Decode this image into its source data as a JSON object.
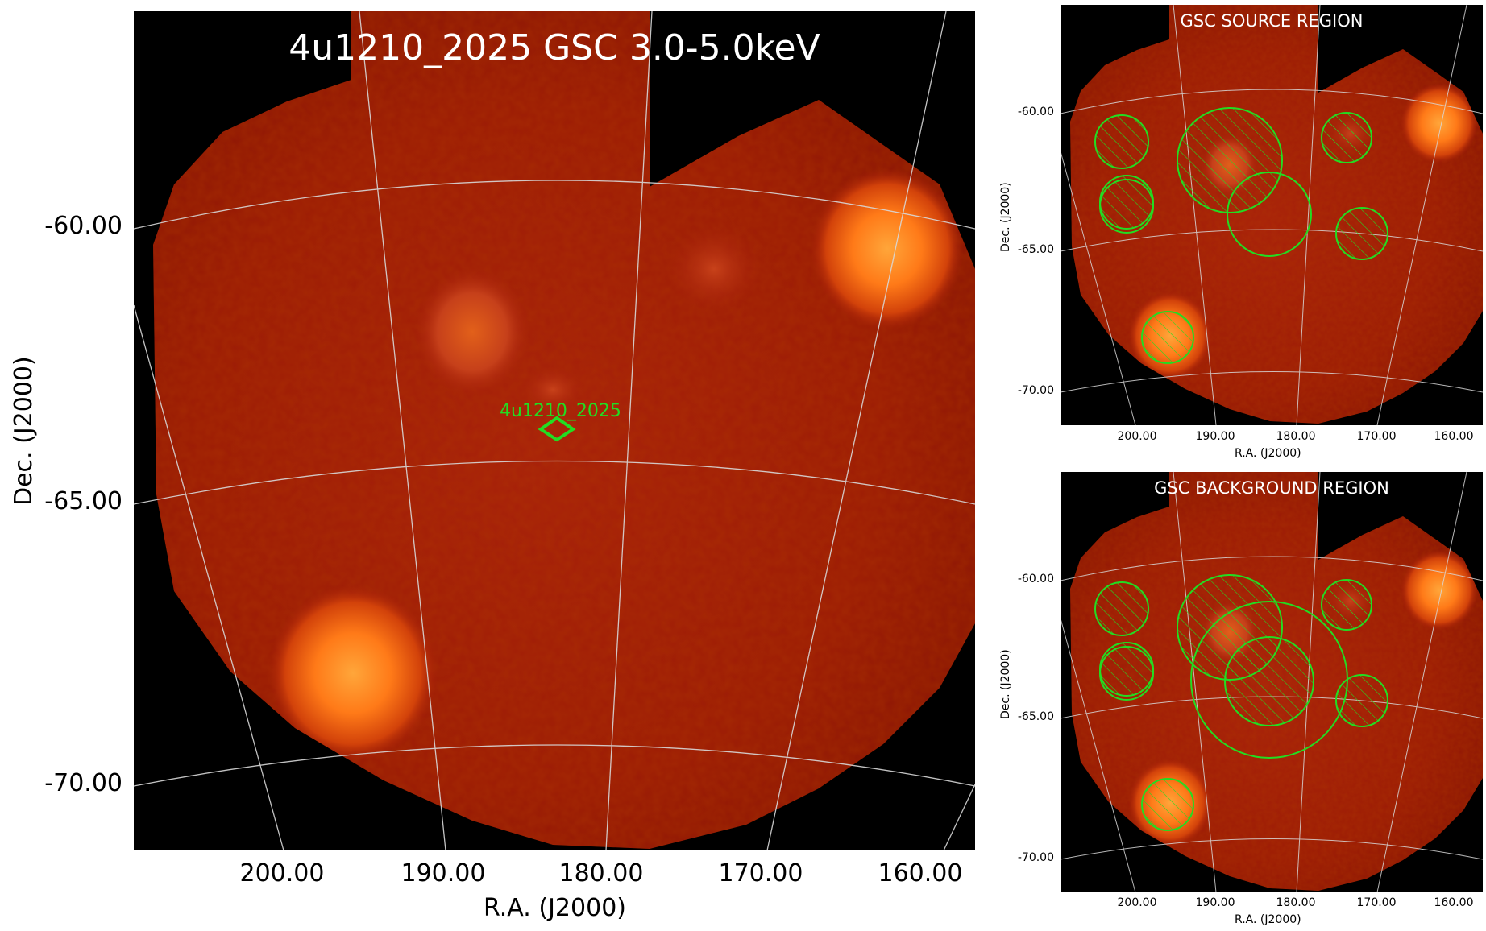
{
  "main_panel": {
    "title": "4u1210_2025 GSC 3.0-5.0keV",
    "source_label": "4u1210_2025",
    "yticks": [
      "-60.00",
      "-65.00",
      "-70.00"
    ],
    "xticks": [
      "200.00",
      "190.00",
      "180.00",
      "170.00",
      "160.00"
    ],
    "xlabel": "R.A. (J2000)",
    "ylabel": "Dec. (J2000)"
  },
  "source_panel": {
    "title": "GSC SOURCE REGION",
    "yticks": [
      "-60.00",
      "-65.00",
      "-70.00"
    ],
    "xticks": [
      "200.00",
      "190.00",
      "180.00",
      "170.00",
      "160.00"
    ],
    "xlabel": "R.A. (J2000)",
    "ylabel": "Dec. (J2000)"
  },
  "background_panel": {
    "title": "GSC BACKGROUND REGION",
    "yticks": [
      "-60.00",
      "-65.00",
      "-70.00"
    ],
    "xticks": [
      "200.00",
      "190.00",
      "180.00",
      "170.00",
      "160.00"
    ],
    "xlabel": "R.A. (J2000)",
    "ylabel": "Dec. (J2000)"
  },
  "colors": {
    "background": "#000000",
    "image_base": "#9e1a04",
    "bright_source": "#ff8c1a",
    "grid": "#d8d8d8",
    "region": "#22dd22",
    "title_text": "#ffffff"
  }
}
